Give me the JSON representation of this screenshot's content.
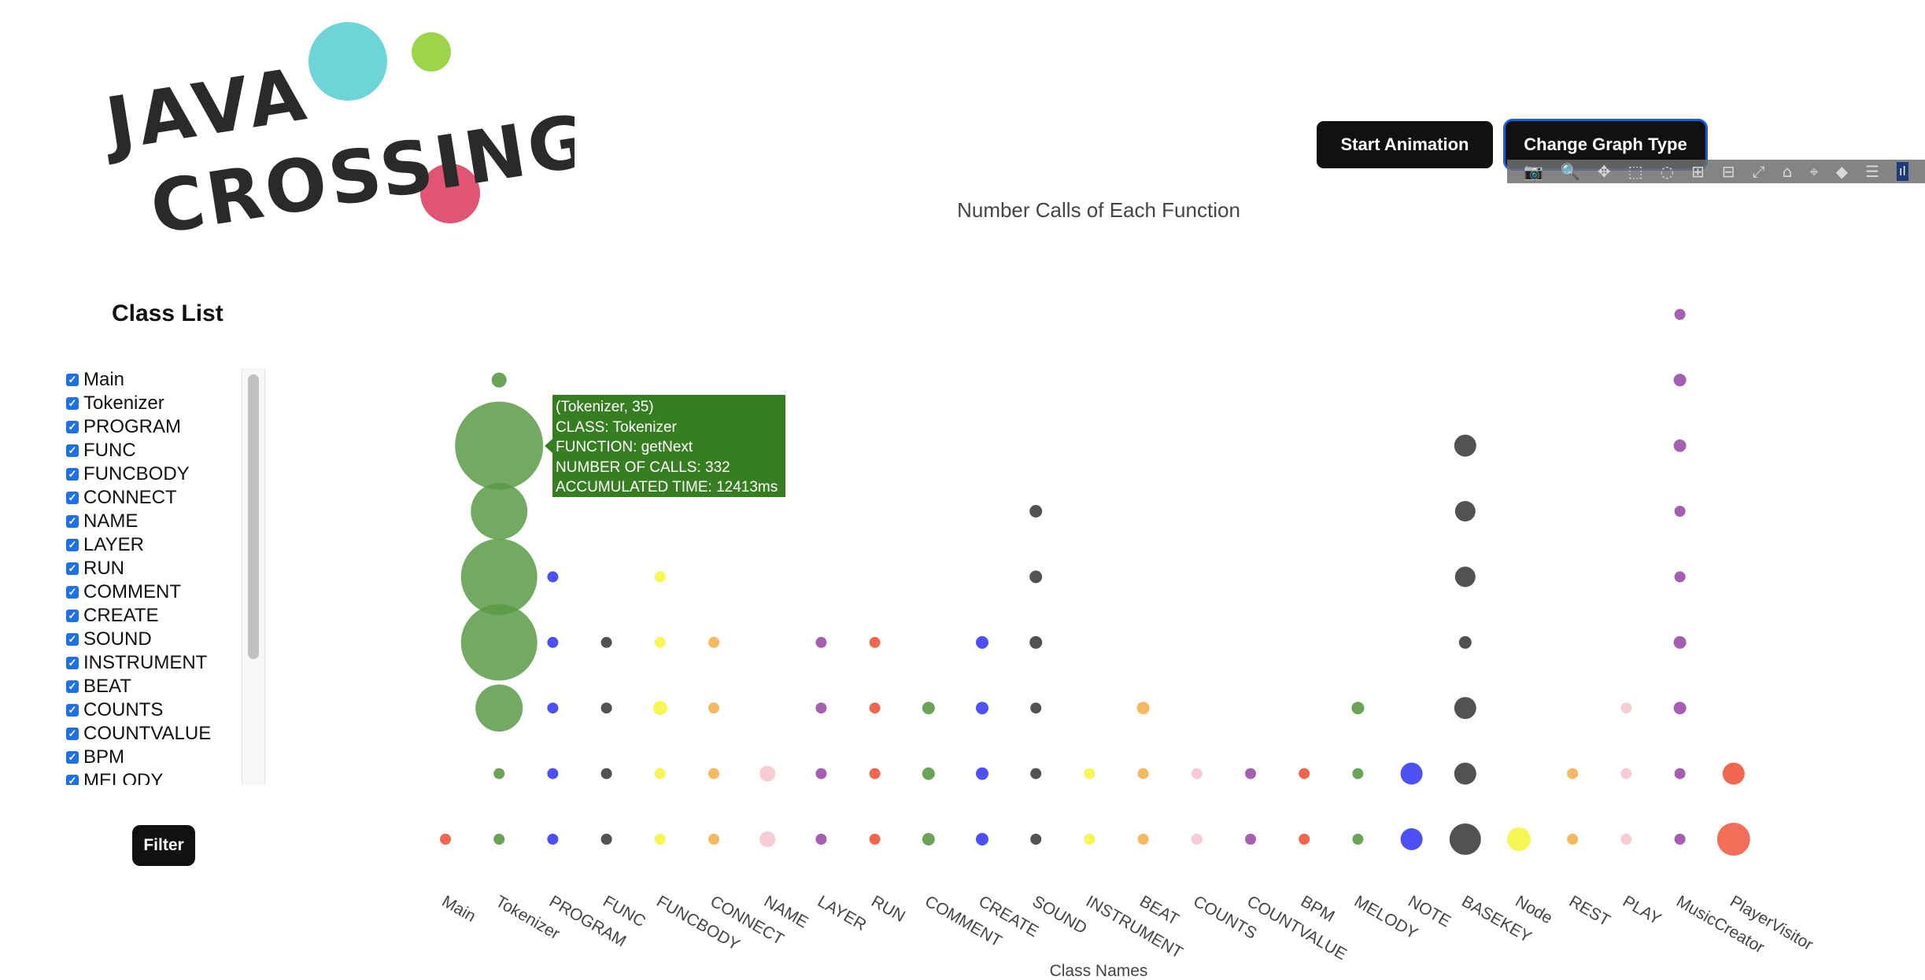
{
  "logo": {
    "line1": "JAVA",
    "line2": "CROSSING",
    "dot_colors": [
      "#6dd5d8",
      "#9ed44a",
      "#e05574"
    ]
  },
  "buttons": {
    "start_animation": "Start Animation",
    "change_graph_type": "Change Graph Type",
    "filter": "Filter"
  },
  "modebar": {
    "icons": [
      "camera-icon",
      "zoom-icon",
      "pan-icon",
      "box-select-icon",
      "lasso-icon",
      "zoom-in-icon",
      "zoom-out-icon",
      "autoscale-icon",
      "home-icon",
      "spike-lines-icon",
      "hover-closest-icon",
      "hover-compare-icon",
      "plotly-logo-icon"
    ],
    "glyphs": [
      "📷",
      "🔍",
      "✥",
      "⬚",
      "◌",
      "⊞",
      "⊟",
      "⤢",
      "⌂",
      "⌖",
      "◆",
      "☰",
      "ıl"
    ]
  },
  "sidebar": {
    "title": "Class List",
    "items": [
      "Main",
      "Tokenizer",
      "PROGRAM",
      "FUNC",
      "FUNCBODY",
      "CONNECT",
      "NAME",
      "LAYER",
      "RUN",
      "COMMENT",
      "CREATE",
      "SOUND",
      "INSTRUMENT",
      "BEAT",
      "COUNTS",
      "COUNTVALUE",
      "BPM",
      "MELODY"
    ]
  },
  "tooltip": {
    "line1": "(Tokenizer, 35)",
    "line2": "CLASS: Tokenizer",
    "line3": "FUNCTION: getNext",
    "line4": "NUMBER OF CALLS: 332",
    "line5": "ACCUMULATED TIME: 12413ms",
    "color": "#377e22"
  },
  "chart_data": {
    "type": "scatter",
    "title": "Number Calls of Each Function",
    "xlabel": "Class Names",
    "ylabel": "",
    "categories": [
      "Main",
      "Tokenizer",
      "PROGRAM",
      "FUNC",
      "FUNCBODY",
      "CONNECT",
      "NAME",
      "LAYER",
      "RUN",
      "COMMENT",
      "CREATE",
      "SOUND",
      "INSTRUMENT",
      "BEAT",
      "COUNTS",
      "COUNTVALUE",
      "BPM",
      "MELODY",
      "NOTE",
      "BASEKEY",
      "Node",
      "REST",
      "PLAY",
      "MusicCreator",
      "PlayerVisitor"
    ],
    "colors": {
      "Main": "#ef553b",
      "Tokenizer": "#5b9a47",
      "PROGRAM": "#3a3ef2",
      "FUNC": "#3f3f3f",
      "FUNCBODY": "#f5f542",
      "CONNECT": "#f5b04f",
      "NAME": "#f7c6d0",
      "LAYER": "#9b4ea8",
      "RUN": "#ef553b",
      "COMMENT": "#5b9a47",
      "CREATE": "#3a3ef2",
      "SOUND": "#3f3f3f",
      "INSTRUMENT": "#f5f542",
      "BEAT": "#f5b04f",
      "COUNTS": "#f7c6d0",
      "COUNTVALUE": "#9b4ea8",
      "BPM": "#ef553b",
      "MELODY": "#5b9a47",
      "NOTE": "#3a3ef2",
      "BASEKEY": "#3f3f3f",
      "Node": "#f5f542",
      "REST": "#f5b04f",
      "PLAY": "#f7c6d0",
      "MusicCreator": "#9b4ea8",
      "PlayerVisitor": "#ef553b"
    },
    "points": [
      {
        "class": "Main",
        "level": 0,
        "size": 14
      },
      {
        "class": "Tokenizer",
        "level": 0,
        "size": 14
      },
      {
        "class": "Tokenizer",
        "level": 1,
        "size": 14
      },
      {
        "class": "Tokenizer",
        "level": 2,
        "size": 60
      },
      {
        "class": "Tokenizer",
        "level": 3,
        "size": 97
      },
      {
        "class": "Tokenizer",
        "level": 4,
        "size": 97
      },
      {
        "class": "Tokenizer",
        "level": 5,
        "size": 72
      },
      {
        "class": "Tokenizer",
        "level": 6,
        "size": 112
      },
      {
        "class": "Tokenizer",
        "level": 7,
        "size": 19
      },
      {
        "class": "PROGRAM",
        "level": 0,
        "size": 14
      },
      {
        "class": "PROGRAM",
        "level": 1,
        "size": 14
      },
      {
        "class": "PROGRAM",
        "level": 2,
        "size": 14
      },
      {
        "class": "PROGRAM",
        "level": 3,
        "size": 14
      },
      {
        "class": "PROGRAM",
        "level": 4,
        "size": 14
      },
      {
        "class": "FUNC",
        "level": 0,
        "size": 14
      },
      {
        "class": "FUNC",
        "level": 1,
        "size": 14
      },
      {
        "class": "FUNC",
        "level": 2,
        "size": 14
      },
      {
        "class": "FUNC",
        "level": 3,
        "size": 14
      },
      {
        "class": "FUNCBODY",
        "level": 0,
        "size": 14
      },
      {
        "class": "FUNCBODY",
        "level": 1,
        "size": 14
      },
      {
        "class": "FUNCBODY",
        "level": 2,
        "size": 18
      },
      {
        "class": "FUNCBODY",
        "level": 3,
        "size": 14
      },
      {
        "class": "FUNCBODY",
        "level": 4,
        "size": 14
      },
      {
        "class": "CONNECT",
        "level": 0,
        "size": 14
      },
      {
        "class": "CONNECT",
        "level": 1,
        "size": 14
      },
      {
        "class": "CONNECT",
        "level": 2,
        "size": 14
      },
      {
        "class": "CONNECT",
        "level": 3,
        "size": 14
      },
      {
        "class": "NAME",
        "level": 0,
        "size": 20
      },
      {
        "class": "NAME",
        "level": 1,
        "size": 20
      },
      {
        "class": "LAYER",
        "level": 0,
        "size": 14
      },
      {
        "class": "LAYER",
        "level": 1,
        "size": 14
      },
      {
        "class": "LAYER",
        "level": 2,
        "size": 14
      },
      {
        "class": "LAYER",
        "level": 3,
        "size": 14
      },
      {
        "class": "RUN",
        "level": 0,
        "size": 14
      },
      {
        "class": "RUN",
        "level": 1,
        "size": 14
      },
      {
        "class": "RUN",
        "level": 2,
        "size": 14
      },
      {
        "class": "RUN",
        "level": 3,
        "size": 14
      },
      {
        "class": "COMMENT",
        "level": 0,
        "size": 16
      },
      {
        "class": "COMMENT",
        "level": 1,
        "size": 16
      },
      {
        "class": "COMMENT",
        "level": 2,
        "size": 16
      },
      {
        "class": "CREATE",
        "level": 0,
        "size": 16
      },
      {
        "class": "CREATE",
        "level": 1,
        "size": 16
      },
      {
        "class": "CREATE",
        "level": 2,
        "size": 16
      },
      {
        "class": "CREATE",
        "level": 3,
        "size": 16
      },
      {
        "class": "SOUND",
        "level": 0,
        "size": 14
      },
      {
        "class": "SOUND",
        "level": 1,
        "size": 14
      },
      {
        "class": "SOUND",
        "level": 2,
        "size": 14
      },
      {
        "class": "SOUND",
        "level": 3,
        "size": 16
      },
      {
        "class": "SOUND",
        "level": 4,
        "size": 16
      },
      {
        "class": "SOUND",
        "level": 5,
        "size": 16
      },
      {
        "class": "INSTRUMENT",
        "level": 0,
        "size": 14
      },
      {
        "class": "INSTRUMENT",
        "level": 1,
        "size": 14
      },
      {
        "class": "BEAT",
        "level": 0,
        "size": 14
      },
      {
        "class": "BEAT",
        "level": 1,
        "size": 14
      },
      {
        "class": "BEAT",
        "level": 2,
        "size": 16
      },
      {
        "class": "COUNTS",
        "level": 0,
        "size": 14
      },
      {
        "class": "COUNTS",
        "level": 1,
        "size": 14
      },
      {
        "class": "COUNTVALUE",
        "level": 0,
        "size": 14
      },
      {
        "class": "COUNTVALUE",
        "level": 1,
        "size": 14
      },
      {
        "class": "BPM",
        "level": 0,
        "size": 14
      },
      {
        "class": "BPM",
        "level": 1,
        "size": 14
      },
      {
        "class": "MELODY",
        "level": 0,
        "size": 14
      },
      {
        "class": "MELODY",
        "level": 1,
        "size": 14
      },
      {
        "class": "MELODY",
        "level": 2,
        "size": 16
      },
      {
        "class": "NOTE",
        "level": 0,
        "size": 28
      },
      {
        "class": "NOTE",
        "level": 1,
        "size": 28
      },
      {
        "class": "BASEKEY",
        "level": 0,
        "size": 40
      },
      {
        "class": "BASEKEY",
        "level": 1,
        "size": 28
      },
      {
        "class": "BASEKEY",
        "level": 2,
        "size": 28
      },
      {
        "class": "BASEKEY",
        "level": 3,
        "size": 16
      },
      {
        "class": "BASEKEY",
        "level": 4,
        "size": 26
      },
      {
        "class": "BASEKEY",
        "level": 5,
        "size": 26
      },
      {
        "class": "BASEKEY",
        "level": 6,
        "size": 28
      },
      {
        "class": "Node",
        "level": 0,
        "size": 30
      },
      {
        "class": "REST",
        "level": 0,
        "size": 14
      },
      {
        "class": "REST",
        "level": 1,
        "size": 14
      },
      {
        "class": "PLAY",
        "level": 0,
        "size": 14
      },
      {
        "class": "PLAY",
        "level": 1,
        "size": 14
      },
      {
        "class": "PLAY",
        "level": 2,
        "size": 14
      },
      {
        "class": "MusicCreator",
        "level": 0,
        "size": 14
      },
      {
        "class": "MusicCreator",
        "level": 1,
        "size": 14
      },
      {
        "class": "MusicCreator",
        "level": 2,
        "size": 16
      },
      {
        "class": "MusicCreator",
        "level": 3,
        "size": 16
      },
      {
        "class": "MusicCreator",
        "level": 4,
        "size": 14
      },
      {
        "class": "MusicCreator",
        "level": 5,
        "size": 14
      },
      {
        "class": "MusicCreator",
        "level": 6,
        "size": 16
      },
      {
        "class": "MusicCreator",
        "level": 7,
        "size": 16
      },
      {
        "class": "MusicCreator",
        "level": 8,
        "size": 14
      },
      {
        "class": "PlayerVisitor",
        "level": 0,
        "size": 42
      },
      {
        "class": "PlayerVisitor",
        "level": 1,
        "size": 28
      }
    ]
  }
}
